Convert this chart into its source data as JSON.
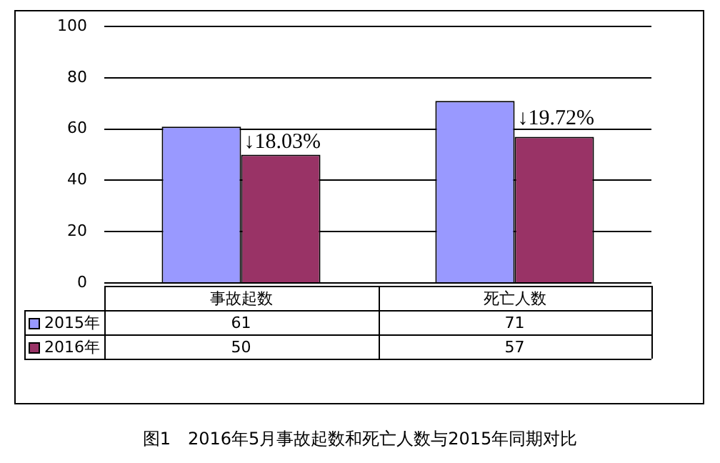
{
  "chart_data": {
    "type": "bar",
    "title": "图1　2016年5月事故起数和死亡人数与2015年同期对比",
    "categories": [
      "事故起数",
      "死亡人数"
    ],
    "series": [
      {
        "name": "2015年",
        "color": "#9999ff",
        "values": [
          61,
          71
        ]
      },
      {
        "name": "2016年",
        "color": "#993366",
        "values": [
          50,
          57
        ]
      }
    ],
    "ylim": [
      0,
      100
    ],
    "yticks": [
      0,
      20,
      40,
      60,
      80,
      100
    ],
    "grid": "y",
    "legend": "bottom left",
    "data_labels": true,
    "annotations": [
      {
        "text": "↓18.03%",
        "x": "事故起数",
        "y": 55
      },
      {
        "text": "↓19.72%",
        "x": "死亡人数",
        "y": 64
      }
    ]
  }
}
